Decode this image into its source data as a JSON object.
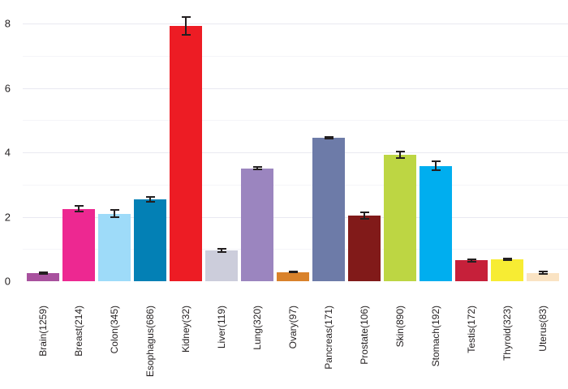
{
  "page": {
    "background": "#ffffff"
  },
  "chart_data": {
    "type": "bar",
    "title": "",
    "xlabel": "",
    "ylabel": "",
    "legend": "none",
    "grid": "horizontal",
    "categories": [
      "Brain(1259)",
      "Breast(214)",
      "Colon(345)",
      "Esophagus(686)",
      "Kidney(32)",
      "Liver(119)",
      "Lung(320)",
      "Ovary(97)",
      "Pancreas(171)",
      "Prostate(106)",
      "Skin(890)",
      "Stomach(192)",
      "Testis(172)",
      "Thyroid(323)",
      "Uterus(83)"
    ],
    "tissues": [
      "Brain",
      "Breast",
      "Colon",
      "Esophagus",
      "Kidney",
      "Liver",
      "Lung",
      "Ovary",
      "Pancreas",
      "Prostate",
      "Skin",
      "Stomach",
      "Testis",
      "Thyroid",
      "Uterus"
    ],
    "sample_sizes": [
      1259,
      214,
      345,
      686,
      32,
      119,
      320,
      97,
      171,
      106,
      890,
      192,
      172,
      323,
      83
    ],
    "values": [
      0.25,
      2.25,
      2.1,
      2.55,
      7.93,
      0.95,
      3.5,
      0.28,
      4.45,
      2.03,
      3.93,
      3.58,
      0.65,
      0.68,
      0.26
    ],
    "errors": [
      0.04,
      0.12,
      0.15,
      0.1,
      0.3,
      0.07,
      0.06,
      0.04,
      0.06,
      0.13,
      0.12,
      0.17,
      0.06,
      0.06,
      0.06
    ],
    "bar_colors": [
      "#a8519e",
      "#ed2891",
      "#9edbf9",
      "#0380b5",
      "#ed1c24",
      "#cccddb",
      "#9b85bf",
      "#d9822b",
      "#6d7ba8",
      "#811a19",
      "#bdd643",
      "#00aeef",
      "#c6203a",
      "#f7ec33",
      "#fae3c3"
    ],
    "ytick_labels": [
      "0",
      "2",
      "4",
      "6",
      "8"
    ],
    "ytick_values": [
      0,
      2,
      4,
      6,
      8
    ],
    "minor_grid_values": [
      1,
      3,
      5,
      7
    ],
    "ylim": [
      0,
      8.5
    ],
    "colors": {
      "error_bar": "#231f20",
      "major_grid": "#e9e9f1",
      "minor_grid": "#f5f5f9",
      "tick_label": "#231f20"
    }
  }
}
